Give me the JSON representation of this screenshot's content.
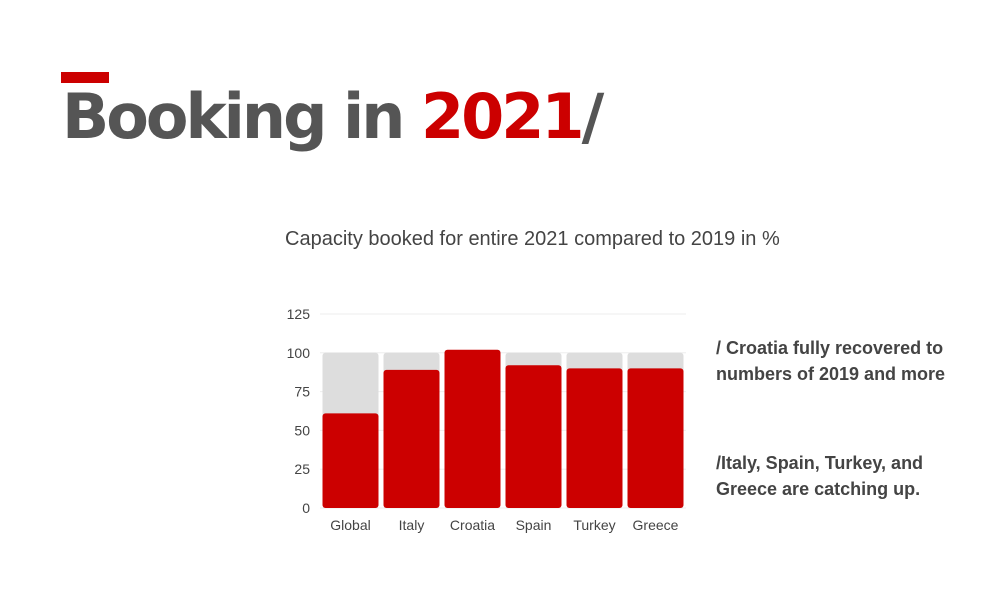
{
  "header": {
    "title_prefix": "Booking in ",
    "title_year": "2021",
    "title_suffix": "/",
    "accent_color": "#cc0000"
  },
  "subtitle": "Capacity booked  for entire 2021 compared to 2019 in %",
  "notes": [
    "/ Croatia fully recovered to numbers of 2019 and more",
    "/Italy, Spain,  Turkey, and Greece are catching up."
  ],
  "chart_data": {
    "type": "bar",
    "categories": [
      "Global",
      "Italy",
      "Croatia",
      "Spain",
      "Turkey",
      "Greece"
    ],
    "series": [
      {
        "values": [
          100,
          100,
          100,
          100,
          100,
          100
        ],
        "color": "#dddddd"
      },
      {
        "values": [
          61,
          89,
          102,
          92,
          90,
          90
        ],
        "color": "#cc0000"
      }
    ],
    "ylim": [
      0,
      125
    ],
    "yticks": [
      0,
      25,
      50,
      75,
      100,
      125
    ],
    "grid": true
  }
}
